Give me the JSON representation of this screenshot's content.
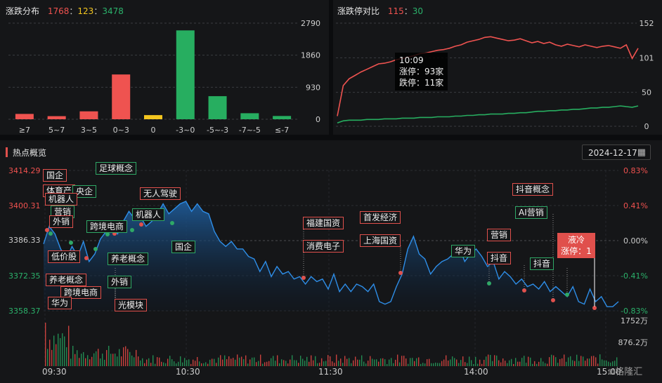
{
  "dist": {
    "title": "涨跌分布",
    "up": "1768",
    "flat": "123",
    "down": "3478",
    "yticks": [
      "2790",
      "1860",
      "930",
      "0"
    ],
    "chart_data": {
      "type": "bar",
      "categories": [
        "≥7",
        "5~7",
        "3~5",
        "0~3",
        "0",
        "-3~0",
        "-5~-3",
        "-7~-5",
        "≤-7"
      ],
      "values": [
        155,
        90,
        230,
        1300,
        120,
        2580,
        670,
        175,
        95
      ],
      "colors": [
        "#ef5350",
        "#ef5350",
        "#ef5350",
        "#ef5350",
        "#f4c61f",
        "#27ae60",
        "#27ae60",
        "#27ae60",
        "#27ae60"
      ],
      "ylim": [
        0,
        2790
      ]
    }
  },
  "ratio": {
    "title": "涨跌停对比",
    "up": "115",
    "down": "30",
    "yticks": [
      "152",
      "101",
      "50",
      "0"
    ],
    "tooltip": {
      "time": "10:09",
      "up_label": "涨停：93家",
      "down_label": "跌停：11家"
    },
    "chart_data": {
      "type": "line",
      "ylim": [
        0,
        152
      ],
      "series": [
        {
          "color": "#ef5350",
          "values": [
            15,
            60,
            70,
            75,
            80,
            84,
            88,
            92,
            93,
            95,
            98,
            100,
            102,
            104,
            107,
            108,
            110,
            112,
            113,
            115,
            118,
            120,
            124,
            126,
            128,
            131,
            132,
            130,
            128,
            126,
            127,
            129,
            126,
            123,
            125,
            122,
            124,
            120,
            118,
            121,
            119,
            117,
            120,
            118,
            116,
            118,
            119,
            117,
            115,
            120,
            100,
            115
          ]
        },
        {
          "color": "#27ae60",
          "values": [
            5,
            8,
            9,
            9,
            9,
            10,
            10,
            10,
            11,
            11,
            11,
            12,
            12,
            12,
            13,
            13,
            13,
            14,
            14,
            14,
            15,
            15,
            16,
            16,
            17,
            17,
            18,
            18,
            18,
            19,
            19,
            20,
            20,
            21,
            22,
            22,
            23,
            23,
            24,
            24,
            25,
            25,
            26,
            27,
            27,
            28,
            28,
            29,
            30,
            29,
            28,
            30
          ]
        }
      ]
    }
  },
  "hot": {
    "title": "热点概览",
    "date": "2024-12-17",
    "calendar_icon": "calendar-icon",
    "price_labels": [
      "3414.29",
      "3400.31",
      "3386.33",
      "3372.35",
      "3358.37"
    ],
    "pct_labels": [
      "0.83%",
      "0.41%",
      "0.00%",
      "-0.41%",
      "-0.83%"
    ],
    "vol_labels": [
      "1752万",
      "876.2万"
    ],
    "time_labels": [
      "09:30",
      "10:30",
      "11:30",
      "14:00",
      "15:00"
    ],
    "tags": {
      "guoqi1": "国企",
      "tiyu": "体育产",
      "yangqi": "央企",
      "jiqiren1": "机器人",
      "yingxiao1": "营销",
      "waixiao1": "外销",
      "zuqiu": "足球概念",
      "kuajing1": "跨境电商",
      "wuren": "无人驾驶",
      "jiqiren2": "机器人",
      "dijia": "低价股",
      "yanglao1": "养老概念",
      "kuajing2": "跨境电商",
      "huawei1": "华为",
      "yanglao2": "养老概念",
      "waixiao2": "外销",
      "guangmokuai": "光模块",
      "guoqi2": "国企",
      "fujian": "福建国资",
      "xiaofei": "消费电子",
      "shoufa": "首发经济",
      "shanghai": "上海国资",
      "huawei2": "华为",
      "yingxiao2": "营销",
      "douyin1": "抖音",
      "douyingainian": "抖音概念",
      "aiyingxiao": "AI营销",
      "douyin2": "抖音",
      "yeleng": "液冷",
      "zhangting": "涨停：1"
    },
    "chart_data": {
      "type": "area",
      "ylim": [
        3358.37,
        3414.29
      ],
      "values": [
        3385,
        3392,
        3389,
        3383,
        3379,
        3384,
        3380,
        3386,
        3378,
        3381,
        3387,
        3390,
        3392,
        3389,
        3394,
        3398,
        3395,
        3396,
        3392,
        3394,
        3397,
        3401,
        3397,
        3399,
        3401,
        3402,
        3398,
        3401,
        3398,
        3397,
        3390,
        3386,
        3384,
        3386,
        3383,
        3383,
        3380,
        3379,
        3374,
        3378,
        3372,
        3376,
        3373,
        3374,
        3371,
        3372,
        3369,
        3372,
        3370,
        3371,
        3367,
        3373,
        3366,
        3369,
        3366,
        3369,
        3368,
        3366,
        3369,
        3362,
        3361,
        3362,
        3368,
        3373,
        3383,
        3388,
        3381,
        3379,
        3373,
        3376,
        3378,
        3379,
        3381,
        3384,
        3378,
        3381,
        3383,
        3380,
        3376,
        3378,
        3371,
        3374,
        3372,
        3369,
        3371,
        3368,
        3369,
        3367,
        3370,
        3366,
        3368,
        3366,
        3364,
        3368,
        3362,
        3361,
        3367,
        3362,
        3364,
        3360,
        3360,
        3362
      ]
    }
  }
}
